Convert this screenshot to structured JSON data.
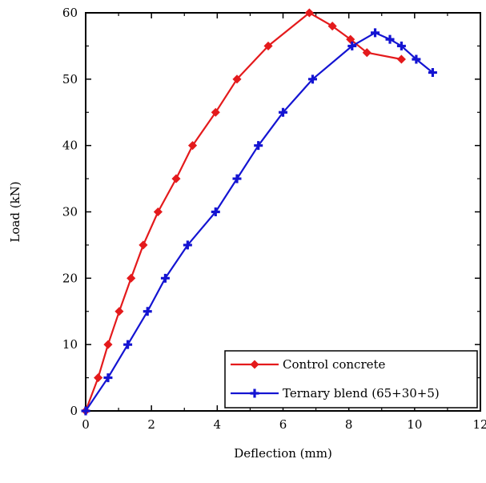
{
  "chart_data": {
    "type": "line",
    "title": "",
    "xlabel": "Deflection (mm)",
    "ylabel": "Load (kN)",
    "xlim": [
      0,
      12
    ],
    "ylim": [
      0,
      60
    ],
    "xticks": [
      0,
      2,
      4,
      6,
      8,
      10,
      12
    ],
    "yticks": [
      0,
      10,
      20,
      30,
      40,
      50,
      60
    ],
    "grid": false,
    "legend_position": "bottom-right",
    "series": [
      {
        "name": "Control concrete",
        "color": "#e41a1c",
        "marker": "diamond",
        "points": [
          [
            0,
            0
          ],
          [
            0.38,
            5
          ],
          [
            0.68,
            10
          ],
          [
            1.02,
            15
          ],
          [
            1.38,
            20
          ],
          [
            1.75,
            25
          ],
          [
            2.2,
            30
          ],
          [
            2.75,
            35
          ],
          [
            3.25,
            40
          ],
          [
            3.95,
            45
          ],
          [
            4.6,
            50
          ],
          [
            5.55,
            55
          ],
          [
            6.8,
            60
          ],
          [
            7.5,
            58
          ],
          [
            8.05,
            56
          ],
          [
            8.55,
            54
          ],
          [
            9.6,
            53
          ]
        ]
      },
      {
        "name": "Ternary blend (65+30+5)",
        "color": "#1414d2",
        "marker": "plus",
        "points": [
          [
            0,
            0
          ],
          [
            0.68,
            5
          ],
          [
            1.28,
            10
          ],
          [
            1.88,
            15
          ],
          [
            2.42,
            20
          ],
          [
            3.1,
            25
          ],
          [
            3.95,
            30
          ],
          [
            4.6,
            35
          ],
          [
            5.25,
            40
          ],
          [
            6.0,
            45
          ],
          [
            6.9,
            50
          ],
          [
            8.1,
            55
          ],
          [
            8.8,
            57
          ],
          [
            9.25,
            56
          ],
          [
            9.6,
            55
          ],
          [
            10.05,
            53
          ],
          [
            10.55,
            51
          ]
        ]
      }
    ]
  }
}
